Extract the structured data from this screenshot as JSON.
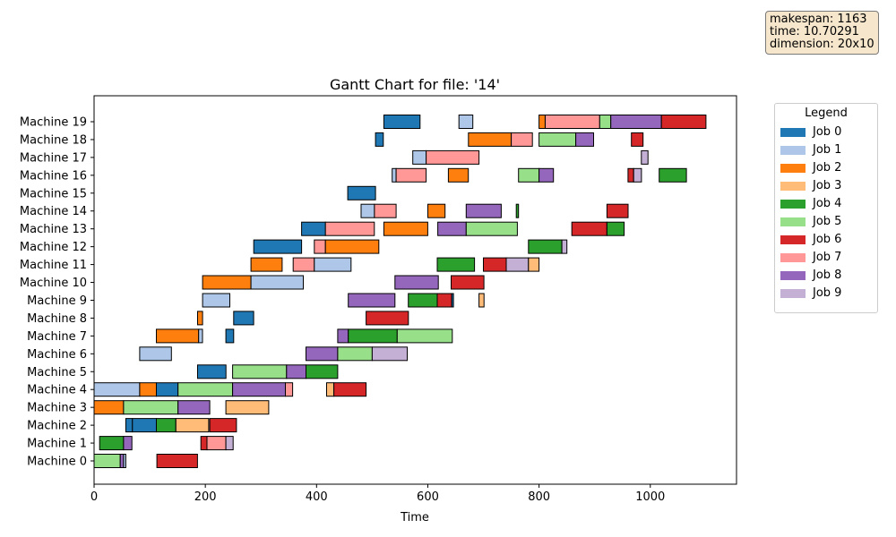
{
  "info": {
    "lines": [
      "makespan: 1163",
      "time: 10.70291",
      "dimension: 20x10"
    ]
  },
  "legend": {
    "title": "Legend",
    "items": [
      {
        "label": "Job 0",
        "color": "#1f77b4"
      },
      {
        "label": "Job 1",
        "color": "#aec7e8"
      },
      {
        "label": "Job 2",
        "color": "#ff7f0e"
      },
      {
        "label": "Job 3",
        "color": "#ffbb78"
      },
      {
        "label": "Job 4",
        "color": "#2ca02c"
      },
      {
        "label": "Job 5",
        "color": "#98df8a"
      },
      {
        "label": "Job 6",
        "color": "#d62728"
      },
      {
        "label": "Job 7",
        "color": "#ff9896"
      },
      {
        "label": "Job 8",
        "color": "#9467bd"
      },
      {
        "label": "Job 9",
        "color": "#c5b0d5"
      }
    ]
  },
  "chart_data": {
    "type": "gantt",
    "title": "Gantt Chart for file: '14'",
    "xlabel": "Time",
    "ylabel": "",
    "xlim": [
      0,
      1155
    ],
    "xticks": [
      0,
      200,
      400,
      600,
      800,
      1000
    ],
    "machines": [
      "Machine 0",
      "Machine 1",
      "Machine 2",
      "Machine 3",
      "Machine 4",
      "Machine 5",
      "Machine 6",
      "Machine 7",
      "Machine 8",
      "Machine 9",
      "Machine 10",
      "Machine 11",
      "Machine 12",
      "Machine 13",
      "Machine 14",
      "Machine 15",
      "Machine 16",
      "Machine 17",
      "Machine 18",
      "Machine 19"
    ],
    "tasks": [
      {
        "m": 0,
        "job": 5,
        "start": 0,
        "end": 47
      },
      {
        "m": 0,
        "job": 8,
        "start": 47,
        "end": 53
      },
      {
        "m": 0,
        "job": 1,
        "start": 53,
        "end": 57
      },
      {
        "m": 0,
        "job": 6,
        "start": 113,
        "end": 186
      },
      {
        "m": 1,
        "job": 4,
        "start": 10,
        "end": 53
      },
      {
        "m": 1,
        "job": 8,
        "start": 53,
        "end": 68
      },
      {
        "m": 1,
        "job": 6,
        "start": 192,
        "end": 203
      },
      {
        "m": 1,
        "job": 7,
        "start": 203,
        "end": 237
      },
      {
        "m": 1,
        "job": 9,
        "start": 237,
        "end": 250
      },
      {
        "m": 2,
        "job": 0,
        "start": 57,
        "end": 69
      },
      {
        "m": 2,
        "job": 0,
        "start": 69,
        "end": 112
      },
      {
        "m": 2,
        "job": 4,
        "start": 112,
        "end": 147
      },
      {
        "m": 2,
        "job": 3,
        "start": 147,
        "end": 206
      },
      {
        "m": 2,
        "job": 6,
        "start": 208,
        "end": 256
      },
      {
        "m": 3,
        "job": 2,
        "start": 0,
        "end": 53
      },
      {
        "m": 3,
        "job": 5,
        "start": 53,
        "end": 151
      },
      {
        "m": 3,
        "job": 8,
        "start": 151,
        "end": 208
      },
      {
        "m": 3,
        "job": 3,
        "start": 237,
        "end": 314
      },
      {
        "m": 4,
        "job": 1,
        "start": 0,
        "end": 82
      },
      {
        "m": 4,
        "job": 2,
        "start": 82,
        "end": 112
      },
      {
        "m": 4,
        "job": 0,
        "start": 112,
        "end": 151
      },
      {
        "m": 4,
        "job": 5,
        "start": 151,
        "end": 249
      },
      {
        "m": 4,
        "job": 8,
        "start": 249,
        "end": 344
      },
      {
        "m": 4,
        "job": 7,
        "start": 344,
        "end": 357
      },
      {
        "m": 4,
        "job": 3,
        "start": 418,
        "end": 431
      },
      {
        "m": 4,
        "job": 6,
        "start": 431,
        "end": 489
      },
      {
        "m": 5,
        "job": 0,
        "start": 186,
        "end": 237
      },
      {
        "m": 5,
        "job": 5,
        "start": 249,
        "end": 346
      },
      {
        "m": 5,
        "job": 8,
        "start": 346,
        "end": 381
      },
      {
        "m": 5,
        "job": 4,
        "start": 381,
        "end": 438
      },
      {
        "m": 6,
        "job": 1,
        "start": 82,
        "end": 139
      },
      {
        "m": 6,
        "job": 8,
        "start": 381,
        "end": 438
      },
      {
        "m": 6,
        "job": 5,
        "start": 438,
        "end": 500
      },
      {
        "m": 6,
        "job": 9,
        "start": 500,
        "end": 563
      },
      {
        "m": 7,
        "job": 2,
        "start": 112,
        "end": 188
      },
      {
        "m": 7,
        "job": 1,
        "start": 188,
        "end": 195
      },
      {
        "m": 7,
        "job": 0,
        "start": 237,
        "end": 251
      },
      {
        "m": 7,
        "job": 8,
        "start": 438,
        "end": 457
      },
      {
        "m": 7,
        "job": 4,
        "start": 457,
        "end": 545
      },
      {
        "m": 7,
        "job": 5,
        "start": 545,
        "end": 644
      },
      {
        "m": 8,
        "job": 2,
        "start": 186,
        "end": 195
      },
      {
        "m": 8,
        "job": 0,
        "start": 251,
        "end": 287
      },
      {
        "m": 8,
        "job": 6,
        "start": 489,
        "end": 565
      },
      {
        "m": 9,
        "job": 1,
        "start": 195,
        "end": 244
      },
      {
        "m": 9,
        "job": 8,
        "start": 457,
        "end": 541
      },
      {
        "m": 9,
        "job": 4,
        "start": 565,
        "end": 617
      },
      {
        "m": 9,
        "job": 6,
        "start": 617,
        "end": 643
      },
      {
        "m": 9,
        "job": 0,
        "start": 643,
        "end": 646
      },
      {
        "m": 9,
        "job": 3,
        "start": 692,
        "end": 701
      },
      {
        "m": 10,
        "job": 2,
        "start": 195,
        "end": 282
      },
      {
        "m": 10,
        "job": 1,
        "start": 282,
        "end": 376
      },
      {
        "m": 10,
        "job": 8,
        "start": 541,
        "end": 619
      },
      {
        "m": 10,
        "job": 6,
        "start": 642,
        "end": 701
      },
      {
        "m": 11,
        "job": 2,
        "start": 282,
        "end": 338
      },
      {
        "m": 11,
        "job": 7,
        "start": 358,
        "end": 396
      },
      {
        "m": 11,
        "job": 1,
        "start": 396,
        "end": 462
      },
      {
        "m": 11,
        "job": 4,
        "start": 617,
        "end": 684
      },
      {
        "m": 11,
        "job": 6,
        "start": 700,
        "end": 741
      },
      {
        "m": 11,
        "job": 9,
        "start": 741,
        "end": 781
      },
      {
        "m": 11,
        "job": 3,
        "start": 781,
        "end": 800
      },
      {
        "m": 12,
        "job": 0,
        "start": 287,
        "end": 373
      },
      {
        "m": 12,
        "job": 7,
        "start": 396,
        "end": 416
      },
      {
        "m": 12,
        "job": 2,
        "start": 416,
        "end": 512
      },
      {
        "m": 12,
        "job": 4,
        "start": 781,
        "end": 841
      },
      {
        "m": 12,
        "job": 9,
        "start": 841,
        "end": 850
      },
      {
        "m": 13,
        "job": 0,
        "start": 373,
        "end": 416
      },
      {
        "m": 13,
        "job": 7,
        "start": 416,
        "end": 504
      },
      {
        "m": 13,
        "job": 2,
        "start": 521,
        "end": 600
      },
      {
        "m": 13,
        "job": 8,
        "start": 618,
        "end": 669
      },
      {
        "m": 13,
        "job": 5,
        "start": 669,
        "end": 761
      },
      {
        "m": 13,
        "job": 6,
        "start": 859,
        "end": 922
      },
      {
        "m": 13,
        "job": 4,
        "start": 922,
        "end": 953
      },
      {
        "m": 14,
        "job": 1,
        "start": 480,
        "end": 504
      },
      {
        "m": 14,
        "job": 7,
        "start": 504,
        "end": 543
      },
      {
        "m": 14,
        "job": 2,
        "start": 600,
        "end": 631
      },
      {
        "m": 14,
        "job": 8,
        "start": 669,
        "end": 732
      },
      {
        "m": 14,
        "job": 4,
        "start": 759,
        "end": 763
      },
      {
        "m": 14,
        "job": 6,
        "start": 922,
        "end": 960
      },
      {
        "m": 15,
        "job": 0,
        "start": 456,
        "end": 506
      },
      {
        "m": 16,
        "job": 1,
        "start": 536,
        "end": 543
      },
      {
        "m": 16,
        "job": 7,
        "start": 543,
        "end": 597
      },
      {
        "m": 16,
        "job": 2,
        "start": 637,
        "end": 673
      },
      {
        "m": 16,
        "job": 5,
        "start": 763,
        "end": 800
      },
      {
        "m": 16,
        "job": 8,
        "start": 800,
        "end": 826
      },
      {
        "m": 16,
        "job": 6,
        "start": 960,
        "end": 970
      },
      {
        "m": 16,
        "job": 9,
        "start": 970,
        "end": 984
      },
      {
        "m": 16,
        "job": 4,
        "start": 1016,
        "end": 1065
      },
      {
        "m": 17,
        "job": 1,
        "start": 573,
        "end": 597
      },
      {
        "m": 17,
        "job": 7,
        "start": 597,
        "end": 692
      },
      {
        "m": 17,
        "job": 9,
        "start": 984,
        "end": 996
      },
      {
        "m": 18,
        "job": 0,
        "start": 506,
        "end": 520
      },
      {
        "m": 18,
        "job": 2,
        "start": 673,
        "end": 750
      },
      {
        "m": 18,
        "job": 7,
        "start": 750,
        "end": 788
      },
      {
        "m": 18,
        "job": 5,
        "start": 800,
        "end": 866
      },
      {
        "m": 18,
        "job": 8,
        "start": 866,
        "end": 898
      },
      {
        "m": 18,
        "job": 6,
        "start": 966,
        "end": 987
      },
      {
        "m": 19,
        "job": 0,
        "start": 521,
        "end": 586
      },
      {
        "m": 19,
        "job": 1,
        "start": 656,
        "end": 681
      },
      {
        "m": 19,
        "job": 2,
        "start": 800,
        "end": 811
      },
      {
        "m": 19,
        "job": 7,
        "start": 811,
        "end": 909
      },
      {
        "m": 19,
        "job": 5,
        "start": 909,
        "end": 929
      },
      {
        "m": 19,
        "job": 8,
        "start": 929,
        "end": 1020
      },
      {
        "m": 19,
        "job": 6,
        "start": 1020,
        "end": 1100
      }
    ]
  }
}
